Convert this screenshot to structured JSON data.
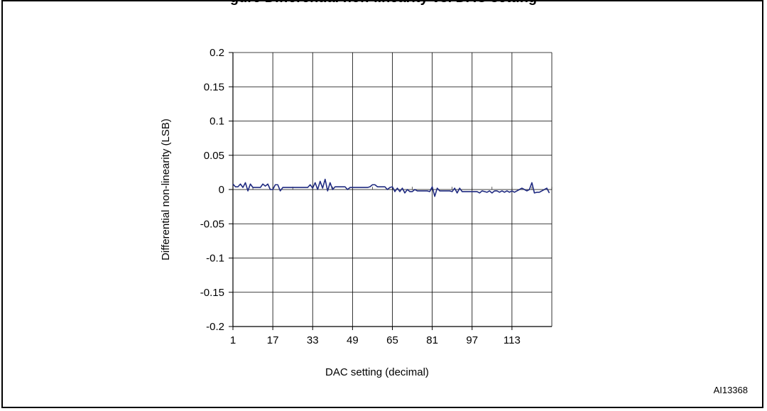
{
  "figure": {
    "caption_partial": "gure    Differential non-linearity vs. DAC setting",
    "id": "AI13368"
  },
  "chart_data": {
    "type": "line",
    "xlabel": "DAC setting (decimal)",
    "ylabel": "Differential non-linearity (LSB)",
    "xlim": [
      1,
      128
    ],
    "ylim": [
      -0.2,
      0.2
    ],
    "x_ticks": [
      1,
      17,
      33,
      49,
      65,
      81,
      97,
      113
    ],
    "y_ticks": [
      0.2,
      0.15,
      0.1,
      0.05,
      0,
      -0.05,
      -0.1,
      -0.15,
      -0.2
    ],
    "y_tick_labels": [
      "0.2",
      "0.15",
      "0.1",
      "0.05",
      "0",
      "-0.05",
      "-0.1",
      "-0.15",
      "-0.2"
    ],
    "grid": true,
    "series": [
      {
        "color": "#1f2a80",
        "x": [
          1,
          2,
          3,
          4,
          5,
          6,
          7,
          8,
          9,
          10,
          11,
          12,
          13,
          14,
          15,
          16,
          17,
          18,
          19,
          20,
          21,
          22,
          23,
          24,
          25,
          26,
          27,
          28,
          29,
          30,
          31,
          32,
          33,
          34,
          35,
          36,
          37,
          38,
          39,
          40,
          41,
          42,
          43,
          44,
          45,
          46,
          47,
          48,
          49,
          50,
          51,
          52,
          53,
          54,
          55,
          56,
          57,
          58,
          59,
          60,
          61,
          62,
          63,
          64,
          65,
          66,
          67,
          68,
          69,
          70,
          71,
          72,
          73,
          74,
          75,
          76,
          77,
          78,
          79,
          80,
          81,
          82,
          83,
          84,
          85,
          86,
          87,
          88,
          89,
          90,
          91,
          92,
          93,
          94,
          95,
          96,
          97,
          98,
          99,
          100,
          101,
          102,
          103,
          104,
          105,
          106,
          107,
          108,
          109,
          110,
          111,
          112,
          113,
          114,
          115,
          116,
          117,
          118,
          119,
          120,
          121,
          122,
          123,
          124,
          125,
          126,
          127,
          128
        ],
        "y": [
          0.008,
          0.004,
          0.004,
          0.008,
          0.003,
          0.01,
          -0.002,
          0.008,
          0.003,
          0.003,
          0.003,
          0.003,
          0.008,
          0.005,
          0.008,
          0.0,
          0.0,
          0.007,
          0.007,
          -0.002,
          0.003,
          0.003,
          0.003,
          0.003,
          0.003,
          0.003,
          0.003,
          0.003,
          0.003,
          0.003,
          0.003,
          0.007,
          0.002,
          0.01,
          0.0,
          0.012,
          0.002,
          0.015,
          -0.002,
          0.01,
          0.0,
          0.004,
          0.004,
          0.004,
          0.004,
          0.004,
          0.0,
          0.003,
          0.003,
          0.003,
          0.003,
          0.003,
          0.003,
          0.003,
          0.003,
          0.004,
          0.007,
          0.007,
          0.004,
          0.004,
          0.004,
          0.004,
          0.0,
          0.003,
          0.004,
          -0.003,
          0.002,
          -0.003,
          0.002,
          -0.005,
          0.0,
          -0.003,
          -0.003,
          0.0,
          -0.002,
          -0.002,
          -0.002,
          -0.002,
          -0.002,
          -0.003,
          0.004,
          -0.01,
          0.002,
          -0.002,
          -0.002,
          -0.002,
          -0.002,
          -0.002,
          -0.003,
          0.002,
          -0.005,
          0.002,
          -0.003,
          -0.003,
          -0.003,
          -0.003,
          -0.003,
          -0.003,
          -0.003,
          -0.005,
          -0.002,
          -0.003,
          -0.004,
          -0.002,
          -0.005,
          -0.002,
          -0.002,
          -0.004,
          -0.002,
          -0.004,
          -0.002,
          -0.004,
          -0.002,
          -0.004,
          -0.002,
          0.0,
          0.002,
          0.0,
          -0.002,
          0.0,
          0.01,
          -0.005,
          -0.004,
          -0.004,
          -0.002,
          0.0,
          0.002,
          -0.005
        ]
      }
    ]
  }
}
